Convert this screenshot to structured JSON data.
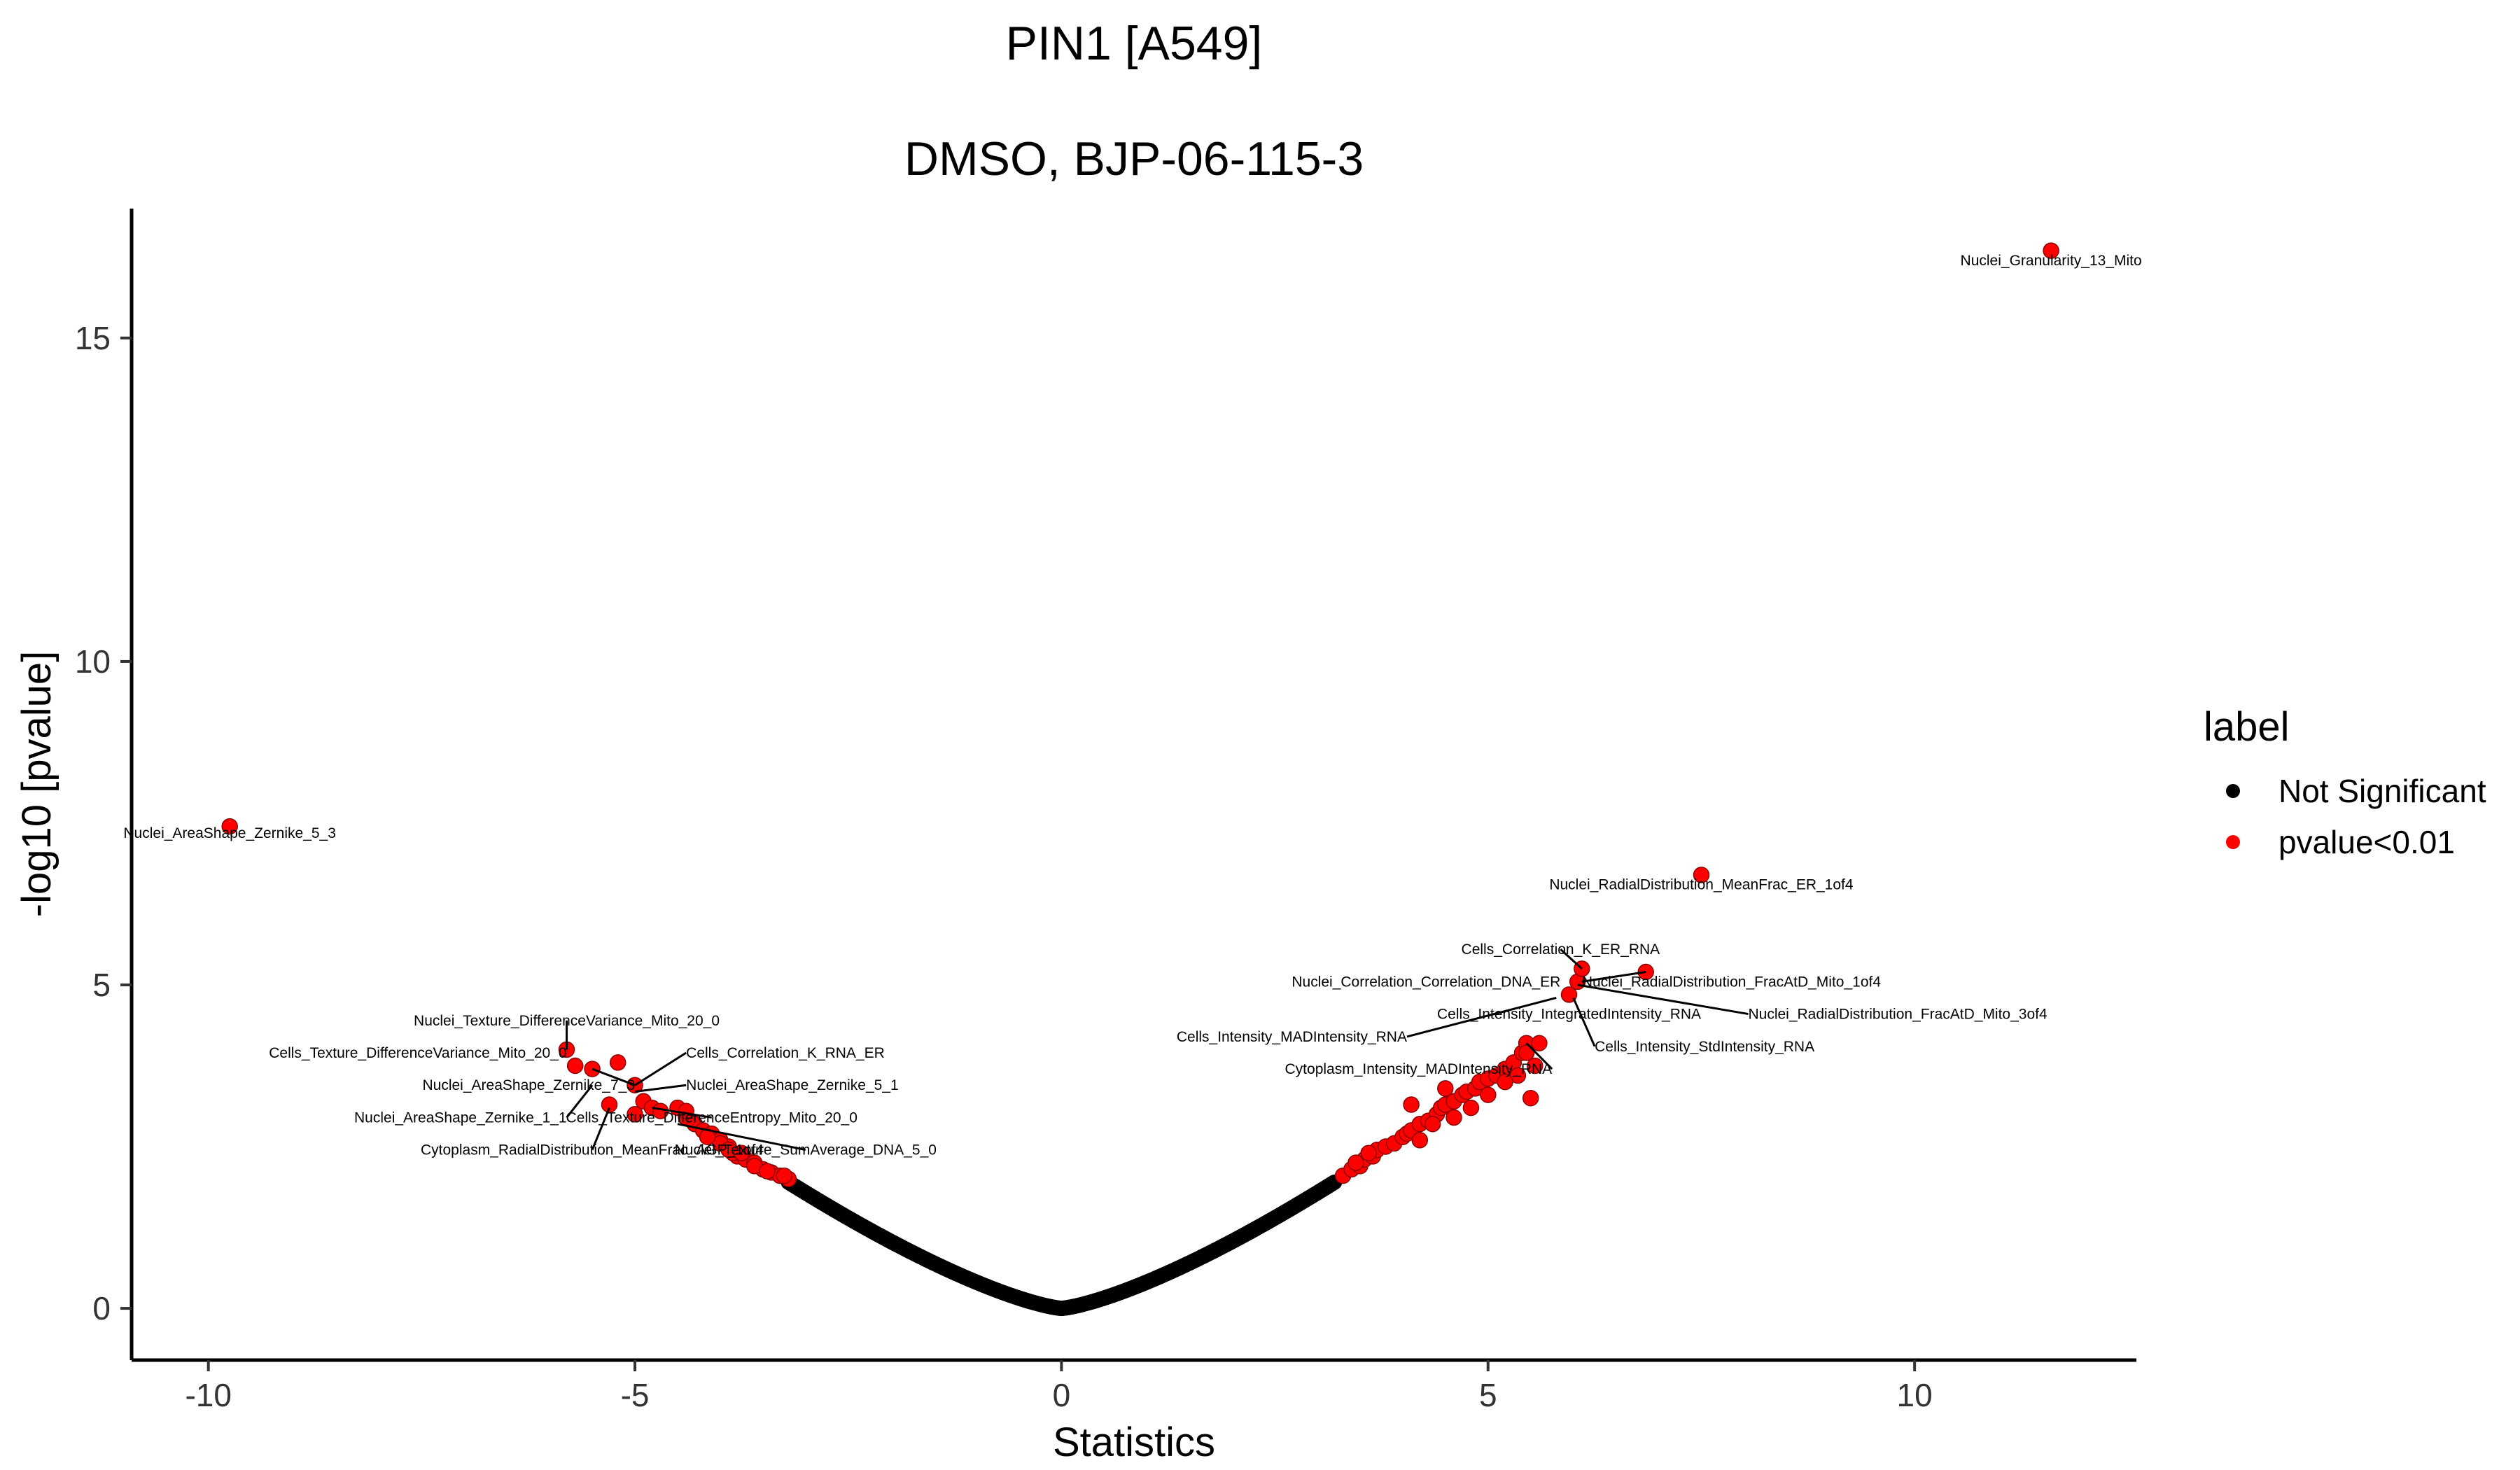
{
  "chart_data": {
    "type": "scatter",
    "title": "PIN1 [A549]",
    "subtitle": "DMSO, BJP-06-115-3",
    "xlabel": "Statistics",
    "ylabel": "-log10 [pvalue]",
    "xlim": [
      -10.9,
      12.6
    ],
    "ylim": [
      -0.8,
      17.0
    ],
    "x_ticks": [
      -10,
      -5,
      0,
      5,
      10
    ],
    "y_ticks": [
      0,
      5,
      10,
      15
    ],
    "x_tick_labels": [
      "-10",
      "-5",
      "0",
      "5",
      "10"
    ],
    "y_tick_labels": [
      "0",
      "5",
      "10",
      "15"
    ],
    "grid": false,
    "colors": {
      "not_significant": "#000000",
      "significant": "#ff0000",
      "dot_outline": "#8b0000"
    },
    "legend": {
      "title": "label",
      "placement": "right",
      "entries": [
        {
          "name": "Not Significant",
          "color": "#000000"
        },
        {
          "name": "pvalue<0.01",
          "color": "#ff0000"
        }
      ]
    },
    "curve_note_series": "Not Significant: points fall along a V-shaped curve from about (-3.2, 1.95) through (0, 0) to (3.2, 1.95)",
    "curve": {
      "x_min": -3.2,
      "x_max": 3.2,
      "x_at_threshold": 3.2,
      "y_at_threshold": 1.95
    },
    "significant_points": [
      [
        -9.75,
        7.45
      ],
      [
        -5.8,
        4.0
      ],
      [
        -5.7,
        3.75
      ],
      [
        -5.5,
        3.7
      ],
      [
        -5.2,
        3.8
      ],
      [
        -5.0,
        3.45
      ],
      [
        -4.9,
        3.2
      ],
      [
        -4.8,
        3.1
      ],
      [
        -4.7,
        3.05
      ],
      [
        -5.0,
        3.0
      ],
      [
        -5.3,
        3.15
      ],
      [
        -4.5,
        3.1
      ],
      [
        -4.4,
        2.95
      ],
      [
        -4.3,
        2.85
      ],
      [
        -4.2,
        2.75
      ],
      [
        -4.1,
        2.7
      ],
      [
        -4.0,
        2.6
      ],
      [
        -3.9,
        2.5
      ],
      [
        -3.8,
        2.35
      ],
      [
        -3.7,
        2.3
      ],
      [
        -3.6,
        2.25
      ],
      [
        -3.5,
        2.15
      ],
      [
        -3.4,
        2.1
      ],
      [
        -3.3,
        2.05
      ],
      [
        -3.2,
        2.0
      ],
      [
        -4.4,
        3.05
      ],
      [
        -4.0,
        2.55
      ],
      [
        -3.85,
        2.4
      ],
      [
        -3.6,
        2.2
      ],
      [
        -4.15,
        2.65
      ],
      [
        -3.9,
        2.45
      ],
      [
        -3.75,
        2.4
      ],
      [
        -3.45,
        2.12
      ],
      [
        -3.25,
        2.05
      ],
      [
        3.3,
        2.05
      ],
      [
        3.4,
        2.15
      ],
      [
        3.5,
        2.2
      ],
      [
        3.55,
        2.3
      ],
      [
        3.65,
        2.35
      ],
      [
        3.7,
        2.45
      ],
      [
        3.8,
        2.5
      ],
      [
        3.9,
        2.55
      ],
      [
        4.0,
        2.65
      ],
      [
        4.05,
        2.7
      ],
      [
        4.1,
        2.75
      ],
      [
        4.2,
        2.85
      ],
      [
        4.3,
        2.9
      ],
      [
        4.4,
        3.0
      ],
      [
        4.45,
        3.1
      ],
      [
        4.5,
        3.15
      ],
      [
        4.6,
        3.2
      ],
      [
        4.7,
        3.3
      ],
      [
        4.75,
        3.35
      ],
      [
        4.85,
        3.4
      ],
      [
        4.9,
        3.5
      ],
      [
        5.0,
        3.55
      ],
      [
        5.1,
        3.6
      ],
      [
        5.2,
        3.7
      ],
      [
        5.3,
        3.8
      ],
      [
        5.4,
        3.95
      ],
      [
        5.45,
        4.1
      ],
      [
        5.55,
        3.75
      ],
      [
        5.6,
        4.1
      ],
      [
        5.35,
        3.6
      ],
      [
        5.0,
        3.3
      ],
      [
        4.8,
        3.1
      ],
      [
        4.6,
        2.95
      ],
      [
        4.35,
        2.85
      ],
      [
        4.2,
        2.6
      ],
      [
        3.6,
        2.4
      ],
      [
        3.45,
        2.25
      ],
      [
        4.5,
        3.4
      ],
      [
        4.1,
        3.15
      ],
      [
        5.2,
        3.5
      ],
      [
        5.5,
        3.25
      ],
      [
        6.05,
        5.05
      ],
      [
        6.1,
        5.25
      ],
      [
        5.95,
        4.85
      ],
      [
        6.85,
        5.2
      ],
      [
        7.5,
        6.7
      ],
      [
        11.6,
        16.35
      ],
      [
        5.45,
        3.95
      ]
    ],
    "annotations": [
      {
        "text": "Nuclei_Granularity_13_Mito",
        "x": 11.6,
        "y": 16.35,
        "lx": 11.6,
        "ly": 16.2,
        "anchor": "middle"
      },
      {
        "text": "Nuclei_AreaShape_Zernike_5_3",
        "x": -9.75,
        "y": 7.45,
        "lx": -9.75,
        "ly": 7.35,
        "anchor": "middle"
      },
      {
        "text": "Nuclei_RadialDistribution_MeanFrac_ER_1of4",
        "x": 7.5,
        "y": 6.7,
        "lx": 7.5,
        "ly": 6.55,
        "anchor": "middle"
      },
      {
        "text": "Cells_Correlation_K_ER_RNA",
        "x": 6.1,
        "y": 5.25,
        "lx": 5.85,
        "ly": 5.55,
        "anchor": "middle"
      },
      {
        "text": "Nuclei_Correlation_Correlation_DNA_ER",
        "x": 6.05,
        "y": 5.05,
        "lx": 5.85,
        "ly": 5.05,
        "anchor": "end"
      },
      {
        "text": "Nuclei_RadialDistribution_FracAtD_Mito_1of4",
        "x": 6.85,
        "y": 5.2,
        "lx": 6.1,
        "ly": 5.05,
        "anchor": "start"
      },
      {
        "text": "Nuclei_RadialDistribution_FracAtD_Mito_3of4",
        "x": 6.05,
        "y": 5.0,
        "lx": 8.05,
        "ly": 4.55,
        "anchor": "start"
      },
      {
        "text": "Cells_Intensity_IntegratedIntensity_RNA",
        "x": 5.95,
        "y": 4.85,
        "lx": 5.95,
        "ly": 4.55,
        "anchor": "middle"
      },
      {
        "text": "Cells_Intensity_MADIntensity_RNA",
        "x": 5.8,
        "y": 4.8,
        "lx": 4.05,
        "ly": 4.2,
        "anchor": "end"
      },
      {
        "text": "Cells_Intensity_StdIntensity_RNA",
        "x": 6.0,
        "y": 4.8,
        "lx": 6.25,
        "ly": 4.05,
        "anchor": "start"
      },
      {
        "text": "Cytoplasm_Intensity_MADIntensity_RNA",
        "x": 5.45,
        "y": 4.1,
        "lx": 5.75,
        "ly": 3.7,
        "anchor": "end"
      },
      {
        "text": "Nuclei_Texture_DifferenceVariance_Mito_20_0",
        "x": -5.8,
        "y": 4.0,
        "lx": -5.8,
        "ly": 4.45,
        "anchor": "middle"
      },
      {
        "text": "Cells_Texture_DifferenceVariance_Mito_20_0",
        "x": -5.7,
        "y": 3.75,
        "lx": -5.8,
        "ly": 3.95,
        "anchor": "end"
      },
      {
        "text": "Cells_Correlation_K_RNA_ER",
        "x": -5.0,
        "y": 3.45,
        "lx": -4.4,
        "ly": 3.95,
        "anchor": "start"
      },
      {
        "text": "Nuclei_AreaShape_Zernike_7_3",
        "x": -5.5,
        "y": 3.7,
        "lx": -5.0,
        "ly": 3.45,
        "anchor": "end"
      },
      {
        "text": "Nuclei_AreaShape_Zernike_5_1",
        "x": -5.0,
        "y": 3.35,
        "lx": -4.4,
        "ly": 3.45,
        "anchor": "start"
      },
      {
        "text": "Nuclei_AreaShape_Zernike_1_1",
        "x": -5.5,
        "y": 3.45,
        "lx": -5.8,
        "ly": 2.95,
        "anchor": "end"
      },
      {
        "text": "Cells_Texture_DifferenceEntropy_Mito_20_0",
        "x": -4.8,
        "y": 3.1,
        "lx": -4.1,
        "ly": 2.95,
        "anchor": "middle"
      },
      {
        "text": "Cytoplasm_RadialDistribution_MeanFrac_AGP_1of4",
        "x": -5.3,
        "y": 3.1,
        "lx": -5.5,
        "ly": 2.45,
        "anchor": "middle"
      },
      {
        "text": "Nuclei_Texture_SumAverage_DNA_5_0",
        "x": -4.5,
        "y": 2.85,
        "lx": -3.0,
        "ly": 2.45,
        "anchor": "middle"
      }
    ]
  }
}
